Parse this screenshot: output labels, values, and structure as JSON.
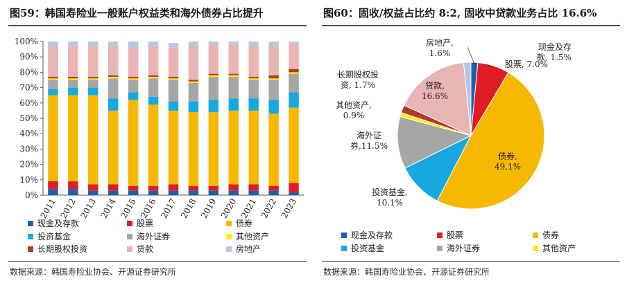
{
  "left": {
    "title": "图59：韩国寿险业一般账户权益类和海外债券占比提升",
    "source": "数据来源：韩国寿险业协会、开源证券研究所"
  },
  "right": {
    "title": "图60：固收/权益占比约 8:2, 固收中贷款业务占比 16.6%",
    "source": "数据来源：韩国寿险业协会、开源证券研究所"
  },
  "colors": {
    "cash": "#1f5fa8",
    "stocks": "#e01c24",
    "bonds": "#f6b800",
    "funds": "#18a8e0",
    "overseas": "#a6a6a6",
    "other": "#ffee00",
    "equity_inv": "#b03a2e",
    "loans": "#e8b4b4",
    "realestate": "#b4c8e6"
  },
  "chart_data": [
    {
      "type": "bar",
      "stacked": true,
      "categories": [
        "2011",
        "2012",
        "2013",
        "2014",
        "2015",
        "2016",
        "2017",
        "2018",
        "2019",
        "2020",
        "2021",
        "2022",
        "2023"
      ],
      "ylim": [
        0,
        100
      ],
      "yticks": [
        "0%",
        "10%",
        "20%",
        "30%",
        "40%",
        "50%",
        "60%",
        "70%",
        "80%",
        "90%",
        "100%"
      ],
      "grid": false,
      "legend_position": "bottom",
      "series": [
        {
          "name": "现金及存款",
          "key": "cash",
          "values": [
            4,
            4,
            3,
            3,
            3,
            3,
            3,
            3,
            3,
            3,
            3,
            3,
            2
          ]
        },
        {
          "name": "股票",
          "key": "stocks",
          "values": [
            5,
            5,
            4,
            4,
            3,
            3,
            4,
            3,
            3,
            4,
            4,
            3,
            6
          ]
        },
        {
          "name": "债券",
          "key": "bonds",
          "values": [
            56,
            56,
            58,
            48,
            56,
            53,
            48,
            48,
            48,
            48,
            48,
            47,
            49
          ]
        },
        {
          "name": "投资基金",
          "key": "funds",
          "values": [
            4,
            5,
            5,
            8,
            5,
            5,
            6,
            7,
            8,
            8,
            8,
            9,
            10
          ]
        },
        {
          "name": "海外证券",
          "key": "overseas",
          "values": [
            6,
            5,
            5,
            13,
            8,
            12,
            14,
            12,
            15,
            14,
            12,
            13,
            12
          ]
        },
        {
          "name": "其他资产",
          "key": "other",
          "values": [
            1,
            1,
            1,
            1,
            1,
            1,
            1,
            1,
            1,
            1,
            1,
            1,
            1
          ]
        },
        {
          "name": "长期股权投资",
          "key": "equity_inv",
          "values": [
            1,
            1,
            1,
            1,
            1,
            1,
            1,
            1,
            1,
            1,
            1,
            2,
            2
          ]
        },
        {
          "name": "贷款",
          "key": "loans",
          "values": [
            20,
            20,
            20,
            19,
            19,
            19,
            19,
            22,
            19,
            19,
            20,
            19,
            17
          ]
        },
        {
          "name": "房地产",
          "key": "realestate",
          "values": [
            3,
            3,
            3,
            3,
            4,
            3,
            3,
            3,
            2,
            2,
            3,
            3,
            1
          ]
        }
      ]
    },
    {
      "type": "pie",
      "slices": [
        {
          "name": "现金及存款",
          "key": "cash",
          "value": 1.5,
          "label_line1": "现金及存",
          "label_line2": "款, 1.5%"
        },
        {
          "name": "股票",
          "key": "stocks",
          "value": 7.0,
          "label_line1": "股票, 7.0%",
          "label_line2": ""
        },
        {
          "name": "债券",
          "key": "bonds",
          "value": 49.1,
          "label_line1": "债券,",
          "label_line2": "49.1%"
        },
        {
          "name": "投资基金",
          "key": "funds",
          "value": 10.1,
          "label_line1": "投资基金,",
          "label_line2": "10.1%"
        },
        {
          "name": "海外证券",
          "key": "overseas",
          "value": 11.5,
          "label_line1": "海外证",
          "label_line2": "券,11.5%"
        },
        {
          "name": "其他资产",
          "key": "other",
          "value": 0.9,
          "label_line1": "其他资产,",
          "label_line2": "0.9%"
        },
        {
          "name": "长期股权投资",
          "key": "equity_inv",
          "value": 1.7,
          "label_line1": "长期股权投",
          "label_line2": "资, 1.7%"
        },
        {
          "name": "贷款",
          "key": "loans",
          "value": 16.6,
          "label_line1": "贷款,",
          "label_line2": "16.6%"
        },
        {
          "name": "房地产",
          "key": "realestate",
          "value": 1.6,
          "label_line1": "房地产,",
          "label_line2": "1.6%"
        }
      ],
      "legend_position": "bottom"
    }
  ]
}
